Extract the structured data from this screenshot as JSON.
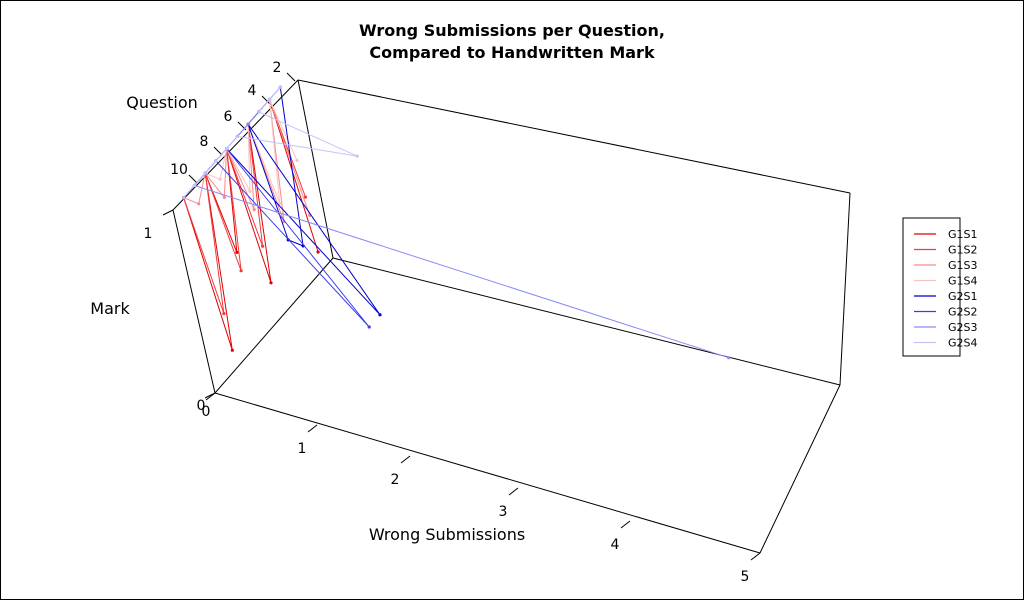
{
  "chart_data": {
    "type": "line",
    "projection": "3d-scatter",
    "title": "Wrong Submissions per Question,",
    "subtitle": "Compared to Handwritten Mark",
    "xlabel": "Wrong Submissions",
    "ylabel": "Question",
    "zlabel": "Mark",
    "x_ticks": [
      "0",
      "1",
      "2",
      "3",
      "4",
      "5"
    ],
    "y_ticks": [
      "2",
      "4",
      "6",
      "8",
      "10"
    ],
    "z_ticks": [
      "0",
      "1"
    ],
    "xlim": [
      0,
      5
    ],
    "ylim": [
      0,
      11
    ],
    "zlim": [
      0,
      1
    ],
    "legend_position": "right",
    "series": [
      {
        "name": "G1S1",
        "color": "#e00000",
        "points": [
          [
            0,
            1,
            0.1
          ],
          [
            0,
            2,
            1
          ],
          [
            0,
            3,
            1
          ],
          [
            0,
            4,
            1
          ],
          [
            0,
            5,
            0.2
          ],
          [
            0,
            6,
            1
          ],
          [
            0,
            7,
            0.5
          ],
          [
            0,
            8,
            1
          ],
          [
            0,
            9,
            0.1
          ],
          [
            0,
            10,
            1
          ]
        ]
      },
      {
        "name": "G1S2",
        "color": "#f23c3c",
        "points": [
          [
            0,
            1,
            0.4
          ],
          [
            0,
            2,
            1
          ],
          [
            0,
            3,
            1
          ],
          [
            0,
            4,
            1
          ],
          [
            0,
            5,
            0.4
          ],
          [
            0,
            6,
            1
          ],
          [
            0,
            7,
            0.4
          ],
          [
            0,
            8,
            1
          ],
          [
            0,
            9,
            0.3
          ],
          [
            0,
            10,
            1
          ]
        ]
      },
      {
        "name": "G1S3",
        "color": "#f78a8a",
        "points": [
          [
            0,
            1,
            0.3
          ],
          [
            0,
            2,
            1
          ],
          [
            0,
            3,
            0.4
          ],
          [
            0,
            4,
            1
          ],
          [
            0,
            5,
            0.6
          ],
          [
            0,
            6,
            1
          ],
          [
            0,
            7,
            0.8
          ],
          [
            0,
            8,
            1
          ],
          [
            0,
            9,
            0.9
          ],
          [
            0,
            10,
            1
          ]
        ]
      },
      {
        "name": "G1S4",
        "color": "#fbc2c2",
        "points": [
          [
            0,
            1,
            0.6
          ],
          [
            0,
            2,
            1
          ],
          [
            0,
            3,
            0.5
          ],
          [
            0,
            4,
            1
          ],
          [
            0,
            5,
            0.7
          ],
          [
            0,
            6,
            1
          ],
          [
            0,
            7,
            0.9
          ],
          [
            0,
            8,
            1
          ],
          [
            0,
            9,
            1
          ],
          [
            0,
            10,
            1
          ]
        ]
      },
      {
        "name": "G2S1",
        "color": "#0000cc",
        "points": [
          [
            0,
            1,
            1
          ],
          [
            0,
            2,
            0.2
          ],
          [
            0,
            3,
            0.3
          ],
          [
            0,
            4,
            1
          ],
          [
            1,
            5,
            0.2
          ],
          [
            0,
            6,
            1
          ],
          [
            0,
            7,
            1
          ],
          [
            0,
            8,
            1
          ],
          [
            0,
            9,
            1
          ],
          [
            0,
            10,
            1
          ]
        ]
      },
      {
        "name": "G2S2",
        "color": "#3c3cee",
        "points": [
          [
            0,
            1,
            1
          ],
          [
            0,
            2,
            1
          ],
          [
            0,
            3,
            1
          ],
          [
            0,
            4,
            1
          ],
          [
            0,
            5,
            1
          ],
          [
            0,
            6,
            1
          ],
          [
            1,
            6,
            0.2
          ],
          [
            0,
            7,
            1
          ],
          [
            0,
            8,
            1
          ],
          [
            0,
            9,
            1
          ]
        ]
      },
      {
        "name": "G2S3",
        "color": "#8a8af7",
        "points": [
          [
            0,
            1,
            1
          ],
          [
            0,
            2,
            1
          ],
          [
            0,
            3,
            1
          ],
          [
            0,
            4,
            1
          ],
          [
            0,
            5,
            1
          ],
          [
            0,
            6,
            1
          ],
          [
            0,
            7,
            1
          ],
          [
            0,
            8,
            1
          ],
          [
            0,
            9,
            1
          ],
          [
            5,
            10,
            1
          ]
        ]
      },
      {
        "name": "G2S4",
        "color": "#c4c4fb",
        "points": [
          [
            0,
            1,
            1
          ],
          [
            0,
            2,
            1
          ],
          [
            0,
            3,
            1
          ],
          [
            1,
            4,
            1
          ],
          [
            0,
            5,
            1
          ],
          [
            0,
            6,
            1
          ],
          [
            0,
            7,
            1
          ],
          [
            0,
            8,
            1
          ],
          [
            0,
            9,
            1
          ],
          [
            0,
            10,
            1
          ]
        ]
      }
    ]
  }
}
